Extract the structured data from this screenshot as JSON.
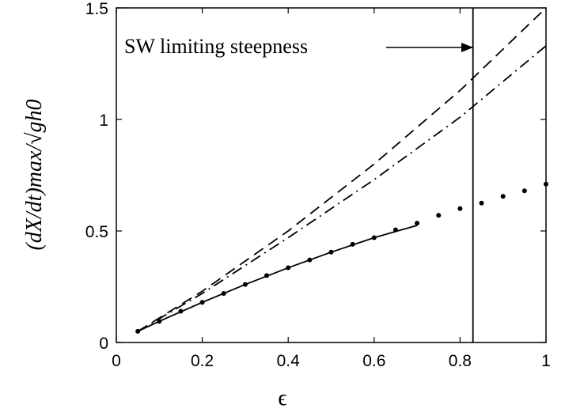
{
  "chart_data": {
    "type": "line",
    "xlabel": "ϵ",
    "ylabel": "(dX/dt)max/√gh0",
    "annotation": "SW limiting steepness",
    "vline": 0.83,
    "xlim": [
      0,
      1
    ],
    "ylim": [
      0,
      1.5
    ],
    "xticks": [
      0,
      0.2,
      0.4,
      0.6,
      0.8,
      1
    ],
    "yticks": [
      0,
      0.5,
      1,
      1.5
    ],
    "series": [
      {
        "style": "dots",
        "color": "#000000",
        "x": [
          0.05,
          0.1,
          0.15,
          0.2,
          0.25,
          0.3,
          0.35,
          0.4,
          0.45,
          0.5,
          0.55,
          0.6,
          0.65,
          0.7,
          0.75,
          0.8,
          0.85,
          0.9,
          0.95,
          1.0
        ],
        "values": [
          0.05,
          0.095,
          0.14,
          0.18,
          0.22,
          0.26,
          0.3,
          0.335,
          0.37,
          0.405,
          0.44,
          0.47,
          0.505,
          0.535,
          0.57,
          0.6,
          0.625,
          0.655,
          0.68,
          0.71
        ]
      },
      {
        "style": "solid",
        "color": "#000000",
        "x": [
          0.05,
          0.1,
          0.2,
          0.3,
          0.4,
          0.5,
          0.6,
          0.7
        ],
        "values": [
          0.05,
          0.095,
          0.18,
          0.26,
          0.335,
          0.405,
          0.47,
          0.525
        ]
      },
      {
        "style": "dashed",
        "color": "#000000",
        "x": [
          0.05,
          0.2,
          0.4,
          0.6,
          0.8,
          1.0
        ],
        "values": [
          0.05,
          0.23,
          0.5,
          0.8,
          1.13,
          1.5
        ]
      },
      {
        "style": "dashdot",
        "color": "#000000",
        "x": [
          0.05,
          0.2,
          0.4,
          0.6,
          0.8,
          1.0
        ],
        "values": [
          0.05,
          0.22,
          0.47,
          0.73,
          1.01,
          1.33
        ]
      }
    ]
  }
}
